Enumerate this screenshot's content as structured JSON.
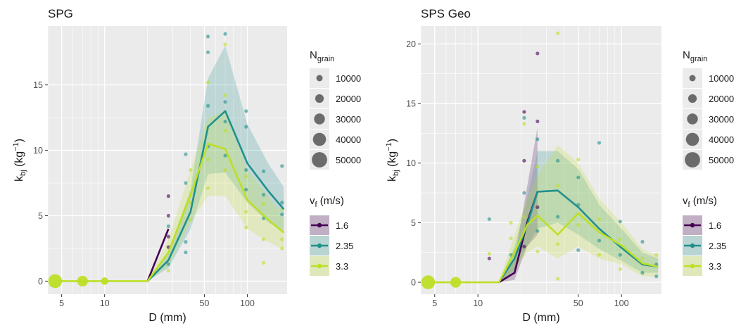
{
  "figure": {
    "xlabel": "D (mm)",
    "ylabel_main": "k",
    "ylabel_sub": "bj",
    "ylabel_unit_pre": " (kg",
    "ylabel_unit_sup": "−1",
    "ylabel_unit_post": ")",
    "size_legend": {
      "title_main": "N",
      "title_sub": "grain",
      "labels": [
        "10000",
        "20000",
        "30000",
        "40000",
        "50000"
      ]
    },
    "color_legend": {
      "title_main": "v",
      "title_sub": "f",
      "title_rest": " (m/s)",
      "labels": [
        "1.6",
        "2.35",
        "3.3"
      ]
    },
    "colors": {
      "1.6": "#440154",
      "2.35": "#21908c",
      "3.3": "#bddf26",
      "panel_bg": "#ebebeb",
      "grid": "#ffffff"
    }
  },
  "chart_data": [
    {
      "type": "line",
      "title": "SPG",
      "xlabel": "D (mm)",
      "ylabel": "kbj (kg−1)",
      "xscale": "log",
      "xlim": [
        4,
        190
      ],
      "ylim": [
        -1,
        19.5
      ],
      "x_ticks": [
        5,
        10,
        50,
        100
      ],
      "y_ticks": [
        0,
        5,
        10,
        15
      ],
      "grid": true,
      "legend": "right",
      "series": [
        {
          "name": "1.6",
          "x": [
            20,
            28
          ],
          "y": [
            0,
            4
          ]
        },
        {
          "name": "2.35",
          "x": [
            20,
            28,
            40,
            53,
            70,
            100,
            140,
            180
          ],
          "y": [
            0,
            1.6,
            5.3,
            11.8,
            13.0,
            9.0,
            6.9,
            5.5
          ],
          "ribbon_low": [
            0,
            1.0,
            4.0,
            8.2,
            8.3,
            6.0,
            4.5,
            3.8
          ],
          "ribbon_high": [
            0,
            2.3,
            7.0,
            15.5,
            18.0,
            12.0,
            9.0,
            7.2
          ]
        },
        {
          "name": "3.3",
          "x": [
            4.5,
            7,
            10,
            14,
            20,
            28,
            40,
            53,
            70,
            100,
            140,
            180
          ],
          "y": [
            0,
            0,
            0,
            0,
            0,
            2.2,
            6.6,
            10.5,
            10.1,
            6.2,
            4.7,
            3.7
          ],
          "ribbon_low": [
            0,
            0,
            0,
            0,
            0,
            1.2,
            4.5,
            6.5,
            6.5,
            4.0,
            3.0,
            2.4
          ],
          "ribbon_high": [
            0,
            0,
            0,
            0,
            0,
            3.2,
            8.5,
            12.5,
            13.0,
            8.5,
            6.5,
            5.0
          ]
        }
      ],
      "points": [
        {
          "x": 4.5,
          "y": 0,
          "series": "3.3",
          "n": 55000
        },
        {
          "x": 7,
          "y": 0,
          "series": "3.3",
          "n": 25000
        },
        {
          "x": 10,
          "y": 0,
          "series": "3.3",
          "n": 6000
        },
        {
          "x": 28,
          "y": 6.5,
          "series": "1.6",
          "n": 1000
        },
        {
          "x": 28,
          "y": 5.0,
          "series": "1.6",
          "n": 1000
        },
        {
          "x": 28,
          "y": 3.4,
          "series": "1.6",
          "n": 1000
        },
        {
          "x": 28,
          "y": 2.6,
          "series": "1.6",
          "n": 1000
        },
        {
          "x": 28,
          "y": 4.2,
          "series": "2.35",
          "n": 1000
        },
        {
          "x": 28,
          "y": 1.3,
          "series": "2.35",
          "n": 1000
        },
        {
          "x": 28,
          "y": 0.8,
          "series": "3.3",
          "n": 1000
        },
        {
          "x": 37,
          "y": 9.7,
          "series": "2.35",
          "n": 1000
        },
        {
          "x": 37,
          "y": 7.5,
          "series": "2.35",
          "n": 1000
        },
        {
          "x": 37,
          "y": 3.0,
          "series": "2.35",
          "n": 1000
        },
        {
          "x": 37,
          "y": 2.2,
          "series": "2.35",
          "n": 1000
        },
        {
          "x": 40,
          "y": 8.5,
          "series": "3.3",
          "n": 1000
        },
        {
          "x": 40,
          "y": 6.0,
          "series": "3.3",
          "n": 1000
        },
        {
          "x": 40,
          "y": 4.7,
          "series": "3.3",
          "n": 1000
        },
        {
          "x": 53,
          "y": 18.7,
          "series": "2.35",
          "n": 1000
        },
        {
          "x": 53,
          "y": 17.5,
          "series": "2.35",
          "n": 1000
        },
        {
          "x": 53,
          "y": 13.4,
          "series": "2.35",
          "n": 1000
        },
        {
          "x": 53,
          "y": 10.3,
          "series": "2.35",
          "n": 1000
        },
        {
          "x": 53,
          "y": 15.2,
          "series": "3.3",
          "n": 1000
        },
        {
          "x": 53,
          "y": 11.7,
          "series": "3.3",
          "n": 1000
        },
        {
          "x": 53,
          "y": 9.3,
          "series": "3.3",
          "n": 1000
        },
        {
          "x": 53,
          "y": 7.1,
          "series": "3.3",
          "n": 1000
        },
        {
          "x": 70,
          "y": 18.9,
          "series": "2.35",
          "n": 1000
        },
        {
          "x": 70,
          "y": 13.7,
          "series": "2.35",
          "n": 1000
        },
        {
          "x": 70,
          "y": 12.2,
          "series": "2.35",
          "n": 1000
        },
        {
          "x": 70,
          "y": 9.6,
          "series": "2.35",
          "n": 1000
        },
        {
          "x": 70,
          "y": 18.1,
          "series": "3.3",
          "n": 1000
        },
        {
          "x": 70,
          "y": 14.2,
          "series": "3.3",
          "n": 1000
        },
        {
          "x": 70,
          "y": 11.5,
          "series": "3.3",
          "n": 1000
        },
        {
          "x": 70,
          "y": 8.5,
          "series": "3.3",
          "n": 1000
        },
        {
          "x": 98,
          "y": 13.0,
          "series": "2.35",
          "n": 1000
        },
        {
          "x": 98,
          "y": 11.8,
          "series": "2.35",
          "n": 1000
        },
        {
          "x": 98,
          "y": 8.5,
          "series": "2.35",
          "n": 1000
        },
        {
          "x": 98,
          "y": 7.0,
          "series": "2.35",
          "n": 1000
        },
        {
          "x": 98,
          "y": 8.0,
          "series": "3.3",
          "n": 1000
        },
        {
          "x": 98,
          "y": 5.3,
          "series": "3.3",
          "n": 1000
        },
        {
          "x": 98,
          "y": 4.1,
          "series": "3.3",
          "n": 1000
        },
        {
          "x": 130,
          "y": 8.4,
          "series": "2.35",
          "n": 1000
        },
        {
          "x": 130,
          "y": 6.6,
          "series": "2.35",
          "n": 1000
        },
        {
          "x": 130,
          "y": 4.8,
          "series": "2.35",
          "n": 1000
        },
        {
          "x": 130,
          "y": 5.9,
          "series": "3.3",
          "n": 1000
        },
        {
          "x": 130,
          "y": 3.2,
          "series": "3.3",
          "n": 1000
        },
        {
          "x": 130,
          "y": 1.4,
          "series": "3.3",
          "n": 1000
        },
        {
          "x": 175,
          "y": 8.8,
          "series": "2.35",
          "n": 1000
        },
        {
          "x": 175,
          "y": 6.0,
          "series": "2.35",
          "n": 1000
        },
        {
          "x": 175,
          "y": 5.1,
          "series": "2.35",
          "n": 1000
        },
        {
          "x": 175,
          "y": 5.5,
          "series": "3.3",
          "n": 1000
        },
        {
          "x": 175,
          "y": 3.2,
          "series": "3.3",
          "n": 1000
        },
        {
          "x": 175,
          "y": 2.5,
          "series": "3.3",
          "n": 1000
        }
      ]
    },
    {
      "type": "line",
      "title": "SPS Geo",
      "xlabel": "D (mm)",
      "ylabel": "kbj (kg−1)",
      "xscale": "log",
      "xlim": [
        4,
        190
      ],
      "ylim": [
        -1,
        21.5
      ],
      "x_ticks": [
        5,
        10,
        50,
        100
      ],
      "y_ticks": [
        0,
        5,
        10,
        15,
        20
      ],
      "grid": true,
      "legend": "right",
      "series": [
        {
          "name": "1.6",
          "x": [
            14,
            18,
            22,
            26
          ],
          "y": [
            0,
            0.8,
            5.0,
            7.6
          ],
          "ribbon_low": [
            0,
            0.2,
            3.0,
            4.0
          ],
          "ribbon_high": [
            0,
            2.0,
            8.0,
            13.0
          ]
        },
        {
          "name": "2.35",
          "x": [
            14,
            18,
            22,
            26,
            36,
            50,
            70,
            100,
            140,
            180
          ],
          "y": [
            0,
            2.0,
            4.8,
            7.6,
            7.7,
            6.3,
            4.5,
            2.9,
            1.5,
            1.3
          ],
          "ribbon_low": [
            0,
            1.0,
            3.0,
            4.5,
            5.0,
            4.0,
            2.8,
            1.8,
            0.8,
            0.8
          ],
          "ribbon_high": [
            0,
            3.0,
            7.0,
            11.0,
            11.0,
            9.5,
            6.5,
            4.5,
            2.5,
            2.0
          ]
        },
        {
          "name": "3.3",
          "x": [
            4.5,
            7,
            10,
            14,
            18,
            22,
            26,
            36,
            50,
            70,
            100,
            140,
            180
          ],
          "y": [
            0,
            0,
            0,
            0,
            2.5,
            4.8,
            5.6,
            4.0,
            5.8,
            4.2,
            3.1,
            1.6,
            1.3
          ],
          "ribbon_low": [
            0,
            0,
            0,
            0,
            1.0,
            2.5,
            3.0,
            2.0,
            3.0,
            2.0,
            1.5,
            0.5,
            0.5
          ],
          "ribbon_high": [
            0,
            0,
            0,
            0,
            4.0,
            7.0,
            9.0,
            11.5,
            10.0,
            7.0,
            5.0,
            2.8,
            2.2
          ]
        }
      ],
      "points": [
        {
          "x": 4.5,
          "y": 0,
          "series": "3.3",
          "n": 55000
        },
        {
          "x": 7,
          "y": 0,
          "series": "3.3",
          "n": 25000
        },
        {
          "x": 12,
          "y": 5.3,
          "series": "2.35",
          "n": 1000
        },
        {
          "x": 12,
          "y": 2.4,
          "series": "3.3",
          "n": 1000
        },
        {
          "x": 12,
          "y": 2.0,
          "series": "1.6",
          "n": 1000
        },
        {
          "x": 17,
          "y": 5.0,
          "series": "3.3",
          "n": 1000
        },
        {
          "x": 17,
          "y": 3.7,
          "series": "3.3",
          "n": 1000
        },
        {
          "x": 17,
          "y": 2.3,
          "series": "2.35",
          "n": 1000
        },
        {
          "x": 21,
          "y": 14.3,
          "series": "1.6",
          "n": 1000
        },
        {
          "x": 21,
          "y": 13.8,
          "series": "2.35",
          "n": 1000
        },
        {
          "x": 21,
          "y": 13.3,
          "series": "3.3",
          "n": 1000
        },
        {
          "x": 21,
          "y": 10.2,
          "series": "1.6",
          "n": 1000
        },
        {
          "x": 21,
          "y": 7.5,
          "series": "2.35",
          "n": 1000
        },
        {
          "x": 21,
          "y": 5.5,
          "series": "3.3",
          "n": 1000
        },
        {
          "x": 21,
          "y": 3.0,
          "series": "1.6",
          "n": 1000
        },
        {
          "x": 26,
          "y": 19.2,
          "series": "1.6",
          "n": 1000
        },
        {
          "x": 26,
          "y": 13.5,
          "series": "1.6",
          "n": 1000
        },
        {
          "x": 26,
          "y": 12.0,
          "series": "2.35",
          "n": 1000
        },
        {
          "x": 26,
          "y": 9.7,
          "series": "3.3",
          "n": 1000
        },
        {
          "x": 26,
          "y": 6.3,
          "series": "1.6",
          "n": 1000
        },
        {
          "x": 26,
          "y": 4.3,
          "series": "2.35",
          "n": 1000
        },
        {
          "x": 26,
          "y": 2.6,
          "series": "3.3",
          "n": 1000
        },
        {
          "x": 36,
          "y": 20.9,
          "series": "3.3",
          "n": 1000
        },
        {
          "x": 36,
          "y": 10.2,
          "series": "2.35",
          "n": 1000
        },
        {
          "x": 36,
          "y": 8.1,
          "series": "3.3",
          "n": 1000
        },
        {
          "x": 36,
          "y": 5.5,
          "series": "2.35",
          "n": 1000
        },
        {
          "x": 36,
          "y": 3.2,
          "series": "3.3",
          "n": 1000
        },
        {
          "x": 36,
          "y": 0.3,
          "series": "3.3",
          "n": 1000
        },
        {
          "x": 50,
          "y": 10.3,
          "series": "3.3",
          "n": 1000
        },
        {
          "x": 50,
          "y": 8.8,
          "series": "2.35",
          "n": 1000
        },
        {
          "x": 50,
          "y": 6.5,
          "series": "2.35",
          "n": 1000
        },
        {
          "x": 50,
          "y": 4.8,
          "series": "3.3",
          "n": 1000
        },
        {
          "x": 50,
          "y": 2.7,
          "series": "2.35",
          "n": 1000
        },
        {
          "x": 70,
          "y": 11.7,
          "series": "2.35",
          "n": 1000
        },
        {
          "x": 70,
          "y": 5.3,
          "series": "3.3",
          "n": 1000
        },
        {
          "x": 70,
          "y": 3.5,
          "series": "2.35",
          "n": 1000
        },
        {
          "x": 70,
          "y": 2.3,
          "series": "3.3",
          "n": 1000
        },
        {
          "x": 98,
          "y": 5.1,
          "series": "2.35",
          "n": 1000
        },
        {
          "x": 98,
          "y": 3.6,
          "series": "3.3",
          "n": 1000
        },
        {
          "x": 98,
          "y": 2.3,
          "series": "2.35",
          "n": 1000
        },
        {
          "x": 98,
          "y": 1.1,
          "series": "3.3",
          "n": 1000
        },
        {
          "x": 140,
          "y": 3.4,
          "series": "2.35",
          "n": 1000
        },
        {
          "x": 140,
          "y": 2.0,
          "series": "3.3",
          "n": 1000
        },
        {
          "x": 140,
          "y": 0.8,
          "series": "2.35",
          "n": 1000
        },
        {
          "x": 175,
          "y": 2.3,
          "series": "3.3",
          "n": 1000
        },
        {
          "x": 175,
          "y": 1.5,
          "series": "2.35",
          "n": 1000
        },
        {
          "x": 175,
          "y": 0.5,
          "series": "2.35",
          "n": 1000
        }
      ]
    }
  ]
}
